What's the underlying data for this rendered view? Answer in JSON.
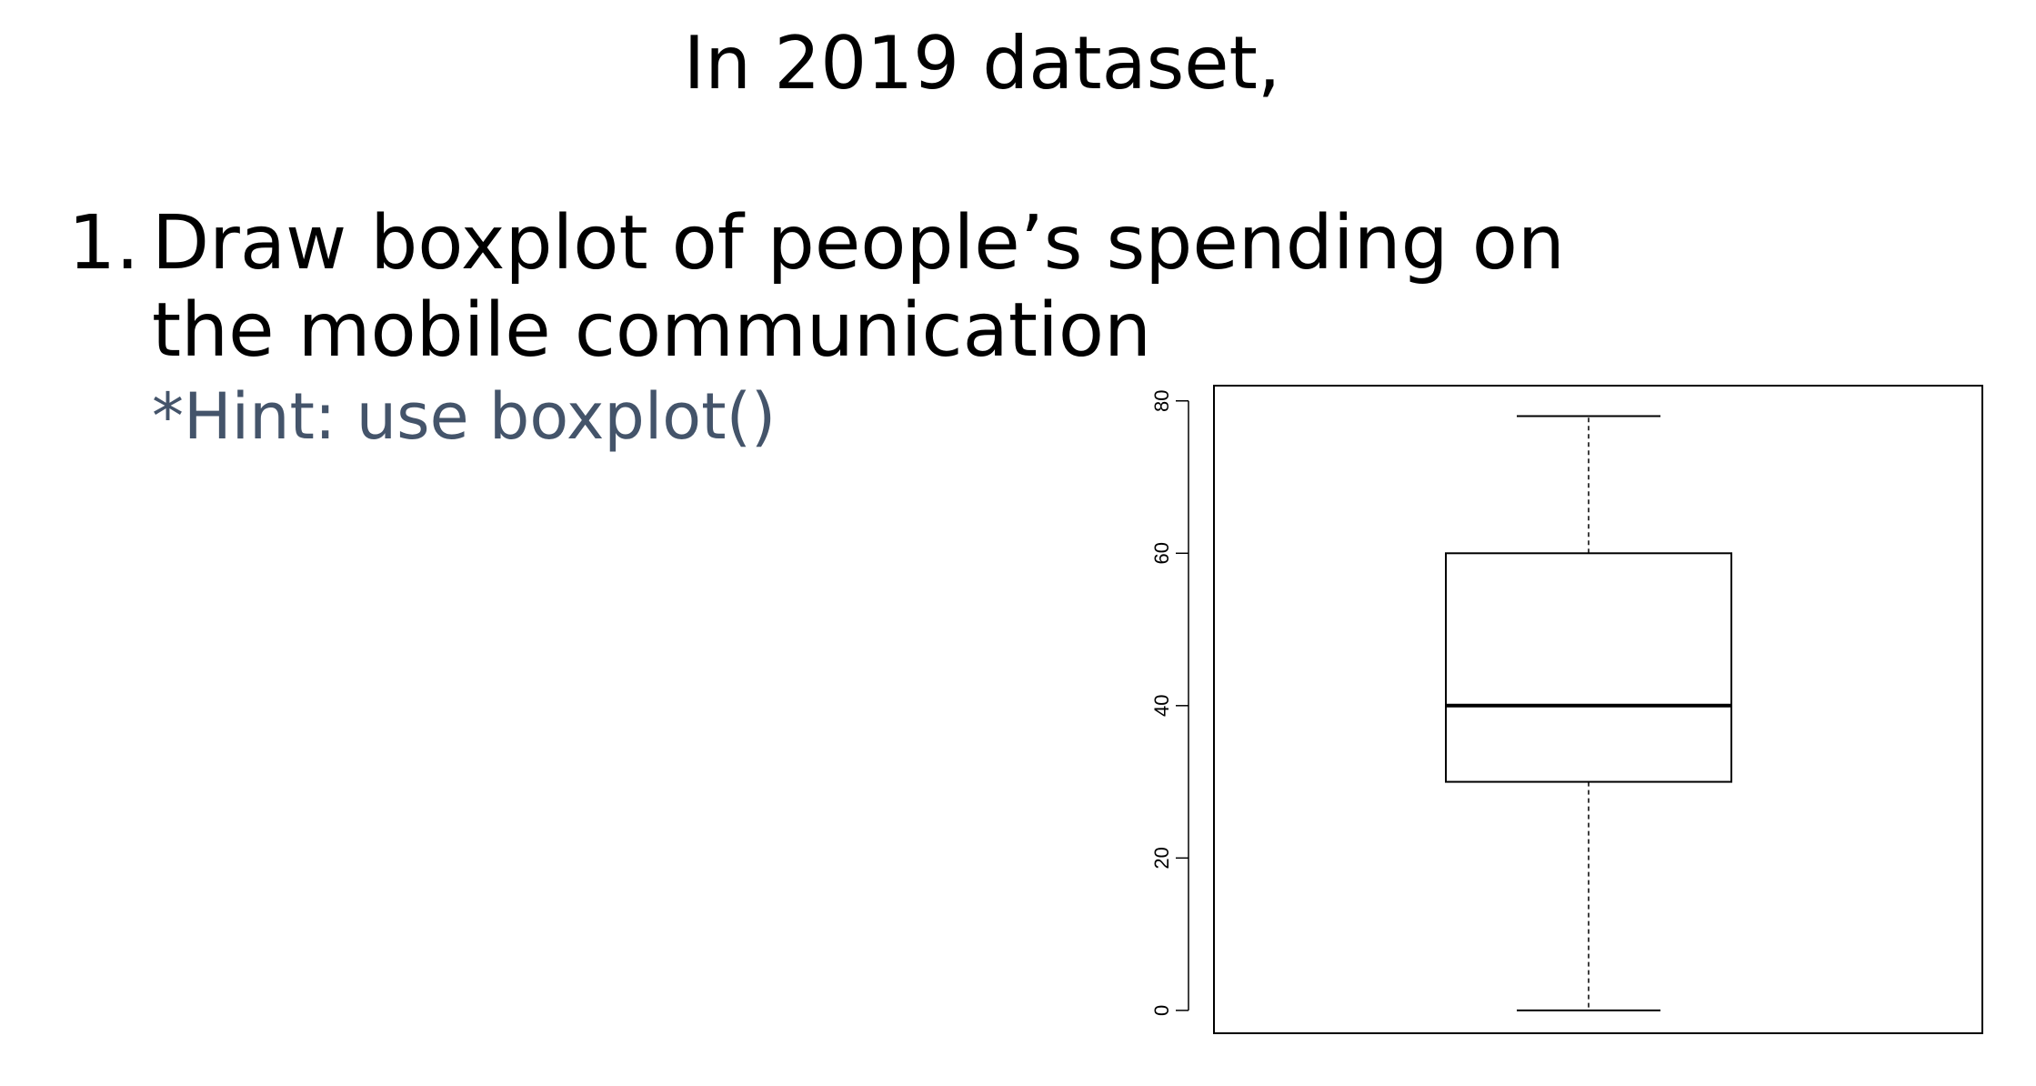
{
  "slide": {
    "title": "In 2019 dataset,",
    "item": {
      "number": "1.",
      "lines": [
        "Draw boxplot of people’s spending on",
        "the mobile communication"
      ],
      "hint": "*Hint: use boxplot()"
    }
  },
  "chart_data": {
    "type": "boxplot",
    "title": "",
    "xlabel": "",
    "ylabel": "",
    "ylim": [
      -3,
      82
    ],
    "y_ticks": [
      0,
      20,
      40,
      60,
      80
    ],
    "y_tick_labels": [
      "0",
      "20",
      "40",
      "60",
      "80"
    ],
    "boxes": [
      {
        "min": 0,
        "q1": 30,
        "median": 40,
        "q3": 60,
        "max": 78
      }
    ],
    "grid": false,
    "colors": {
      "stroke": "#000000",
      "fill": "#ffffff"
    }
  }
}
